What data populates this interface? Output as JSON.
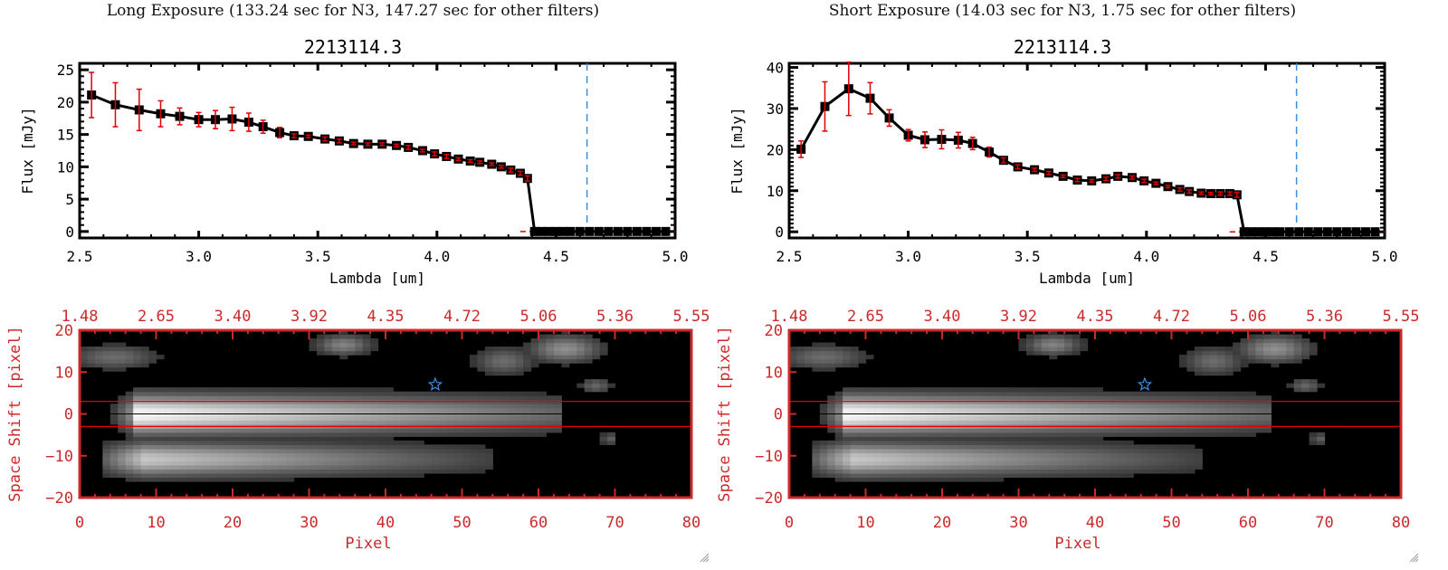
{
  "panels": [
    {
      "heading": "Long Exposure (133.24 sec for N3, 147.27 sec for other filters)",
      "object_id": "2213114.3"
    },
    {
      "heading": "Short Exposure (14.03 sec for N3, 1.75 sec for other filters)",
      "object_id": "2213114.3"
    }
  ],
  "chart_data": [
    {
      "type": "line",
      "title": "2213114.3",
      "subtitle": "Long Exposure (133.24 sec for N3, 147.27 sec for other filters)",
      "xlabel": "Lambda [um]",
      "ylabel": "Flux [mJy]",
      "xlim": [
        2.5,
        5.0
      ],
      "ylim": [
        -1,
        26
      ],
      "xticks": [
        "2.5",
        "3.0",
        "3.5",
        "4.0",
        "4.5",
        "5.0"
      ],
      "yticks": [
        "0",
        "5",
        "10",
        "15",
        "20",
        "25"
      ],
      "marker_line_x": 4.63,
      "zero_line": 0,
      "x": [
        2.55,
        2.65,
        2.75,
        2.84,
        2.92,
        3.0,
        3.07,
        3.14,
        3.21,
        3.27,
        3.34,
        3.4,
        3.46,
        3.53,
        3.59,
        3.65,
        3.71,
        3.77,
        3.83,
        3.88,
        3.94,
        3.99,
        4.04,
        4.09,
        4.14,
        4.18,
        4.23,
        4.27,
        4.31,
        4.35,
        4.38,
        4.41,
        4.44,
        4.47,
        4.5,
        4.53,
        4.56,
        4.6,
        4.64,
        4.68,
        4.72,
        4.76,
        4.8,
        4.84,
        4.88,
        4.92,
        4.96
      ],
      "y": [
        21.1,
        19.6,
        18.8,
        18.2,
        17.8,
        17.3,
        17.3,
        17.4,
        16.9,
        16.2,
        15.3,
        14.8,
        14.7,
        14.3,
        14.0,
        13.6,
        13.5,
        13.5,
        13.3,
        13.0,
        12.5,
        12.0,
        11.6,
        11.2,
        10.9,
        10.7,
        10.4,
        10.0,
        9.5,
        9.0,
        8.2,
        0,
        0,
        0,
        0,
        0,
        0,
        0,
        0,
        0,
        0,
        0,
        0,
        0,
        0,
        0,
        0
      ],
      "yerr": [
        3.5,
        3.4,
        3.2,
        2.0,
        1.3,
        1.1,
        1.4,
        1.8,
        1.4,
        1.0,
        0.8,
        0.3,
        0.2,
        0.3,
        0.3,
        0.2,
        0.2,
        0.2,
        0.2,
        0.3,
        0.2,
        0.3,
        0.3,
        0.2,
        0.2,
        0.2,
        0.2,
        0.2,
        0.3,
        0.3,
        0.4,
        0,
        0,
        0,
        0,
        0,
        0,
        0,
        0,
        0,
        0,
        0,
        0,
        0,
        0,
        0,
        0
      ]
    },
    {
      "type": "line",
      "title": "2213114.3",
      "subtitle": "Short Exposure (14.03 sec for N3, 1.75 sec for other filters)",
      "xlabel": "Lambda [um]",
      "ylabel": "Flux [mJy]",
      "xlim": [
        2.5,
        5.0
      ],
      "ylim": [
        -1.5,
        41
      ],
      "xticks": [
        "2.5",
        "3.0",
        "3.5",
        "4.0",
        "4.5",
        "5.0"
      ],
      "yticks": [
        "0",
        "10",
        "20",
        "30",
        "40"
      ],
      "marker_line_x": 4.63,
      "zero_line": 0,
      "x": [
        2.55,
        2.65,
        2.75,
        2.84,
        2.92,
        3.0,
        3.07,
        3.14,
        3.21,
        3.27,
        3.34,
        3.4,
        3.46,
        3.53,
        3.59,
        3.65,
        3.71,
        3.77,
        3.83,
        3.88,
        3.94,
        3.99,
        4.04,
        4.09,
        4.14,
        4.18,
        4.23,
        4.27,
        4.31,
        4.35,
        4.38,
        4.41,
        4.44,
        4.47,
        4.5,
        4.53,
        4.56,
        4.6,
        4.64,
        4.68,
        4.72,
        4.76,
        4.8,
        4.84,
        4.88,
        4.92,
        4.96
      ],
      "y": [
        20.1,
        30.5,
        34.8,
        32.5,
        27.7,
        23.5,
        22.4,
        22.5,
        22.3,
        21.5,
        19.4,
        17.4,
        15.8,
        15.1,
        14.3,
        13.5,
        12.6,
        12.4,
        12.9,
        13.5,
        13.2,
        12.4,
        11.8,
        11.0,
        10.3,
        9.8,
        9.4,
        9.3,
        9.3,
        9.3,
        9.0,
        0,
        0,
        0,
        0,
        0,
        0,
        0,
        0,
        0,
        0,
        0,
        0,
        0,
        0,
        0,
        0
      ],
      "yerr": [
        2.0,
        6.0,
        6.5,
        3.8,
        2.0,
        1.4,
        1.9,
        2.3,
        1.9,
        1.5,
        1.2,
        0.6,
        0.5,
        0.4,
        0.4,
        0.3,
        0.4,
        0.3,
        0.4,
        0.4,
        0.4,
        0.4,
        0.3,
        0.3,
        0.4,
        0.4,
        0.3,
        0.3,
        0.4,
        0.4,
        0.6,
        0,
        0,
        0,
        0,
        0,
        0,
        0,
        0,
        0,
        0,
        0,
        0,
        0,
        0,
        0,
        0
      ]
    },
    {
      "type": "heatmap",
      "xlabel": "Pixel",
      "ylabel": "Space Shift [pixel]",
      "xlim": [
        0,
        80
      ],
      "ylim": [
        -20,
        20
      ],
      "xticks": [
        "0",
        "10",
        "20",
        "30",
        "40",
        "50",
        "60",
        "70",
        "80"
      ],
      "yticks": [
        "-20",
        "-10",
        "0",
        "10",
        "20"
      ],
      "top_xticks": [
        "1.48",
        "2.65",
        "3.40",
        "3.92",
        "4.35",
        "4.72",
        "5.06",
        "5.36",
        "5.55"
      ],
      "aperture_lines": [
        3,
        -3
      ],
      "center_line": 0,
      "star_marker": {
        "x": 46.5,
        "y": 7
      }
    },
    {
      "type": "heatmap",
      "xlabel": "Pixel",
      "ylabel": "Space Shift [pixel]",
      "xlim": [
        0,
        80
      ],
      "ylim": [
        -20,
        20
      ],
      "xticks": [
        "0",
        "10",
        "20",
        "30",
        "40",
        "50",
        "60",
        "70",
        "80"
      ],
      "yticks": [
        "-20",
        "-10",
        "0",
        "10",
        "20"
      ],
      "top_xticks": [
        "1.48",
        "2.65",
        "3.40",
        "3.92",
        "4.35",
        "4.72",
        "5.06",
        "5.36",
        "5.55"
      ],
      "aperture_lines": [
        3,
        -3
      ],
      "center_line": 0,
      "star_marker": {
        "x": 46.5,
        "y": 7
      }
    }
  ],
  "colors": {
    "axis": "#000000",
    "error_bar": "#e00000",
    "marker_line": "#3a8fe0",
    "zero_line": "#e00000",
    "image_axis": "#cc2a2a",
    "star": "#3a8fe0"
  }
}
